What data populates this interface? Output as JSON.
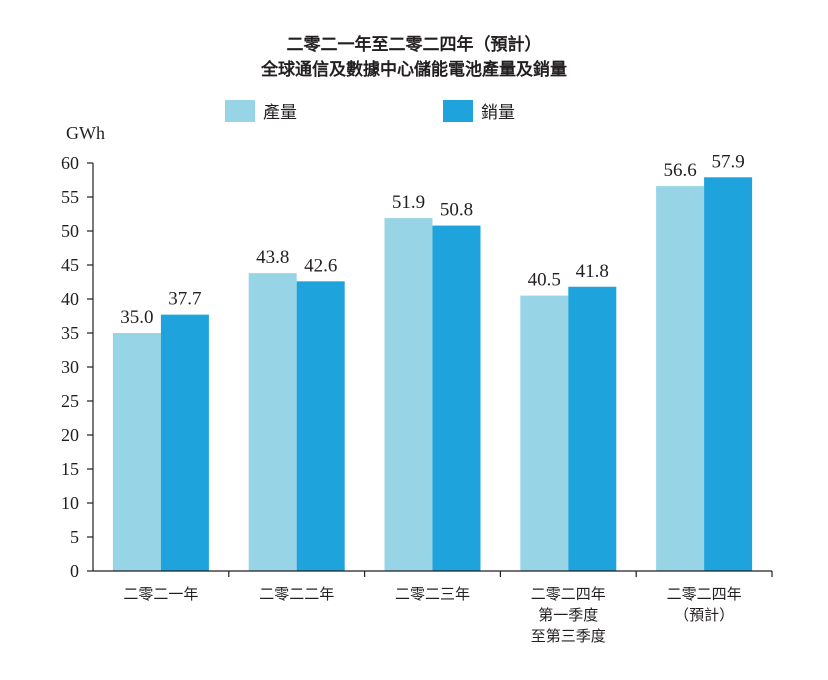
{
  "chart_data": {
    "type": "bar",
    "title": [
      "二零二一年至二零二四年（預計）",
      "全球通信及數據中心儲能電池產量及銷量"
    ],
    "unit": "GWh",
    "ylim": [
      0,
      60
    ],
    "yticks": [
      0,
      5,
      10,
      15,
      20,
      25,
      30,
      35,
      40,
      45,
      50,
      55,
      60
    ],
    "grid": false,
    "legend_position": "top",
    "categories": [
      [
        "二零二一年"
      ],
      [
        "二零二二年"
      ],
      [
        "二零二三年"
      ],
      [
        "二零二四年",
        "第一季度",
        "至第三季度"
      ],
      [
        "二零二四年",
        "（預計）"
      ]
    ],
    "series": [
      {
        "name": "產量",
        "color": "#97d4e6",
        "values": [
          35.0,
          43.8,
          51.9,
          40.5,
          56.6
        ]
      },
      {
        "name": "銷量",
        "color": "#1ea3dc",
        "values": [
          37.7,
          42.6,
          50.8,
          41.8,
          57.9
        ]
      }
    ]
  }
}
